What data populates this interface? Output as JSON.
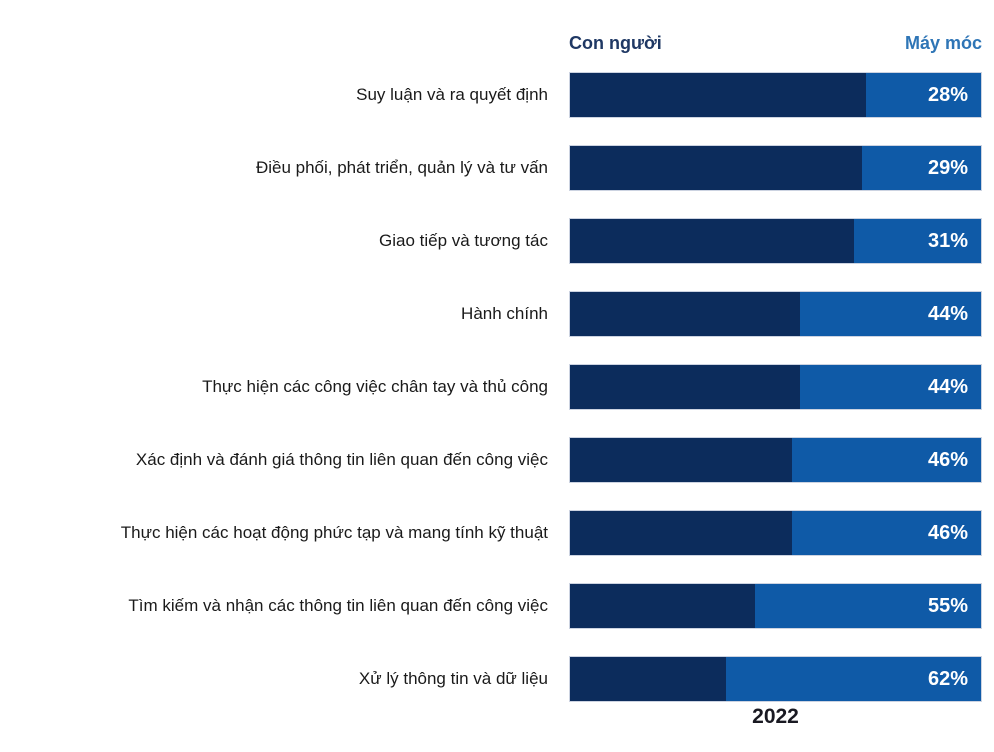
{
  "chart": {
    "legend": {
      "human": "Con người",
      "machine": "Máy móc"
    },
    "footer_year": "2022",
    "colors": {
      "human_bar": "#0c2c5c",
      "machine_bar": "#0f5aa7",
      "human_label": "#1f3864",
      "machine_label": "#2e75b6",
      "percent_text": "#ffffff"
    }
  },
  "chart_data": {
    "type": "bar",
    "orientation": "horizontal",
    "stacked": true,
    "title": "",
    "xlabel": "2022",
    "ylabel": "",
    "xlim": [
      0,
      100
    ],
    "grid": false,
    "legend_position": "top",
    "categories": [
      "Suy luận và ra quyết định",
      "Điều phối, phát triển, quản lý và tư vấn",
      "Giao tiếp và tương tác",
      "Hành chính",
      "Thực hiện các công việc chân tay và thủ công",
      "Xác định và đánh giá thông tin liên quan đến công việc",
      "Thực hiện các hoạt động phức tạp và mang tính kỹ thuật",
      "Tìm kiếm và nhận các thông tin liên quan đến công việc",
      "Xử lý thông tin và dữ liệu"
    ],
    "series": [
      {
        "name": "Con người",
        "values": [
          72,
          71,
          69,
          56,
          56,
          54,
          54,
          45,
          38
        ]
      },
      {
        "name": "Máy móc",
        "values": [
          28,
          29,
          31,
          44,
          44,
          46,
          46,
          55,
          62
        ]
      }
    ],
    "value_labels": [
      "28%",
      "29%",
      "31%",
      "44%",
      "44%",
      "46%",
      "46%",
      "55%",
      "62%"
    ]
  }
}
